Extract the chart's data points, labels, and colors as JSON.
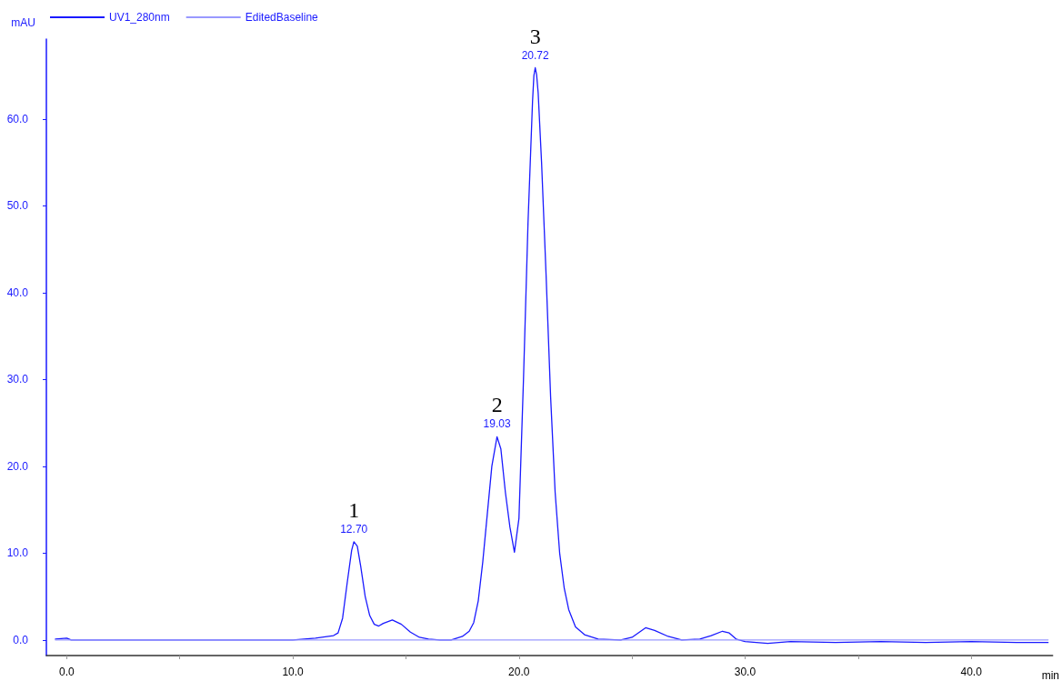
{
  "chart_data": {
    "type": "line",
    "xlabel": "min",
    "ylabel": "mAU",
    "xlim": [
      -0.9,
      43.6
    ],
    "ylim": [
      -1.8,
      69.2
    ],
    "xticks": [
      {
        "value": 0,
        "label": "0.0"
      },
      {
        "value": 5,
        "label": null
      },
      {
        "value": 10,
        "label": "10.0"
      },
      {
        "value": 15,
        "label": null
      },
      {
        "value": 20,
        "label": "20.0"
      },
      {
        "value": 25,
        "label": null
      },
      {
        "value": 30,
        "label": "30.0"
      },
      {
        "value": 35,
        "label": null
      },
      {
        "value": 40,
        "label": "40.0"
      }
    ],
    "yticks": [
      {
        "value": 0,
        "label": "0.0"
      },
      {
        "value": 10,
        "label": "10.0"
      },
      {
        "value": 20,
        "label": "20.0"
      },
      {
        "value": 30,
        "label": "30.0"
      },
      {
        "value": 40,
        "label": "40.0"
      },
      {
        "value": 50,
        "label": "50.0"
      },
      {
        "value": 60,
        "label": "60.0"
      }
    ],
    "grid": false,
    "legend": "top left",
    "marker": "none",
    "line_style": "solid",
    "series": [
      {
        "name": "UV1_280nm",
        "color": "#1a1aff",
        "x": [
          -0.5,
          0,
          0.2,
          2,
          4,
          6,
          8,
          10,
          11,
          11.8,
          12.0,
          12.2,
          12.4,
          12.6,
          12.7,
          12.85,
          13.0,
          13.2,
          13.4,
          13.6,
          13.8,
          14.0,
          14.4,
          14.8,
          15.2,
          15.6,
          16,
          16.5,
          17,
          17.5,
          17.8,
          18.0,
          18.2,
          18.4,
          18.6,
          18.8,
          19.03,
          19.2,
          19.4,
          19.6,
          19.8,
          20.0,
          20.2,
          20.4,
          20.6,
          20.66,
          20.72,
          20.78,
          20.85,
          21.0,
          21.2,
          21.4,
          21.6,
          21.8,
          22.0,
          22.2,
          22.5,
          22.9,
          23.5,
          24.5,
          25.0,
          25.6,
          26.0,
          26.6,
          27.2,
          28,
          28.5,
          29.0,
          29.3,
          29.6,
          30,
          31,
          32,
          34,
          36,
          38,
          40,
          42,
          43.4
        ],
        "values": [
          0.1,
          0.2,
          0,
          0,
          0,
          0,
          0,
          0,
          0.2,
          0.5,
          0.8,
          2.5,
          6.5,
          10.3,
          11.3,
          10.8,
          8.5,
          5.0,
          2.8,
          1.8,
          1.6,
          1.9,
          2.3,
          1.8,
          0.9,
          0.3,
          0.1,
          0,
          0,
          0.4,
          1.0,
          2.0,
          4.5,
          9,
          14.5,
          20,
          23.4,
          22,
          17,
          13,
          10.1,
          14,
          30,
          48,
          62,
          65.0,
          65.9,
          65.1,
          63,
          55,
          42,
          28,
          17,
          10,
          6,
          3.5,
          1.5,
          0.6,
          0.1,
          0,
          0.3,
          1.4,
          1.1,
          0.4,
          0,
          0.1,
          0.5,
          1.0,
          0.8,
          0.1,
          -0.2,
          -0.4,
          -0.2,
          -0.3,
          -0.2,
          -0.3,
          -0.2,
          -0.3,
          -0.3
        ]
      },
      {
        "name": "EditedBaseline",
        "color": "#9999ff",
        "x": [
          -0.5,
          43.4
        ],
        "values": [
          0,
          0
        ]
      }
    ],
    "annotations": [
      {
        "text": "12.70",
        "x": 12.7,
        "y": 11.3
      },
      {
        "text": "1",
        "x": 12.7,
        "y": 11.3
      },
      {
        "text": "19.03",
        "x": 19.03,
        "y": 23.4
      },
      {
        "text": "2",
        "x": 19.03,
        "y": 23.4
      },
      {
        "text": "20.72",
        "x": 20.72,
        "y": 65.9
      },
      {
        "text": "3",
        "x": 20.72,
        "y": 65.9
      }
    ]
  }
}
